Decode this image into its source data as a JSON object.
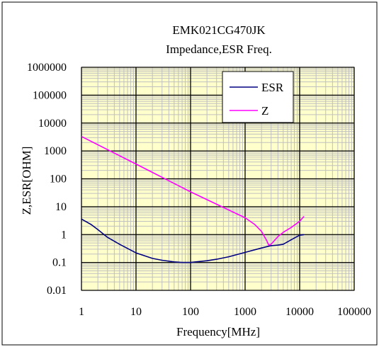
{
  "chart_data": {
    "type": "line",
    "title": "EMK021CG470JK",
    "subtitle": "Impedance,ESR  Freq.",
    "xlabel": "Frequency[MHz]",
    "ylabel": "Z,ESR[OHM]",
    "x_scale": "log",
    "y_scale": "log",
    "xlim": [
      1,
      100000
    ],
    "ylim": [
      0.01,
      1000000
    ],
    "x_ticks": [
      "1",
      "10",
      "100",
      "1000",
      "10000",
      "100000"
    ],
    "y_ticks": [
      "0.01",
      "0.1",
      "1",
      "10",
      "100",
      "1000",
      "10000",
      "100000",
      "1000000"
    ],
    "grid": true,
    "legend_position": "top-right",
    "series": [
      {
        "name": "ESR",
        "color": "#000080",
        "x": [
          1,
          1.5,
          2,
          3,
          5,
          10,
          20,
          30,
          50,
          70,
          100,
          200,
          300,
          500,
          1000,
          2000,
          3000,
          4000,
          5000,
          7000,
          10000,
          12000
        ],
        "y": [
          3.6,
          2.3,
          1.5,
          0.8,
          0.45,
          0.22,
          0.14,
          0.12,
          0.105,
          0.1,
          0.1,
          0.115,
          0.13,
          0.16,
          0.23,
          0.33,
          0.4,
          0.42,
          0.45,
          0.65,
          0.95,
          1.0
        ]
      },
      {
        "name": "Z",
        "color": "#ff00ff",
        "x": [
          1,
          10,
          100,
          1000,
          1500,
          2000,
          2500,
          2700,
          3000,
          4000,
          5000,
          7000,
          10000,
          12000
        ],
        "y": [
          3300,
          340,
          34,
          4,
          2.3,
          1.3,
          0.6,
          0.42,
          0.45,
          0.85,
          1.2,
          1.8,
          3.0,
          4.5
        ]
      }
    ]
  }
}
